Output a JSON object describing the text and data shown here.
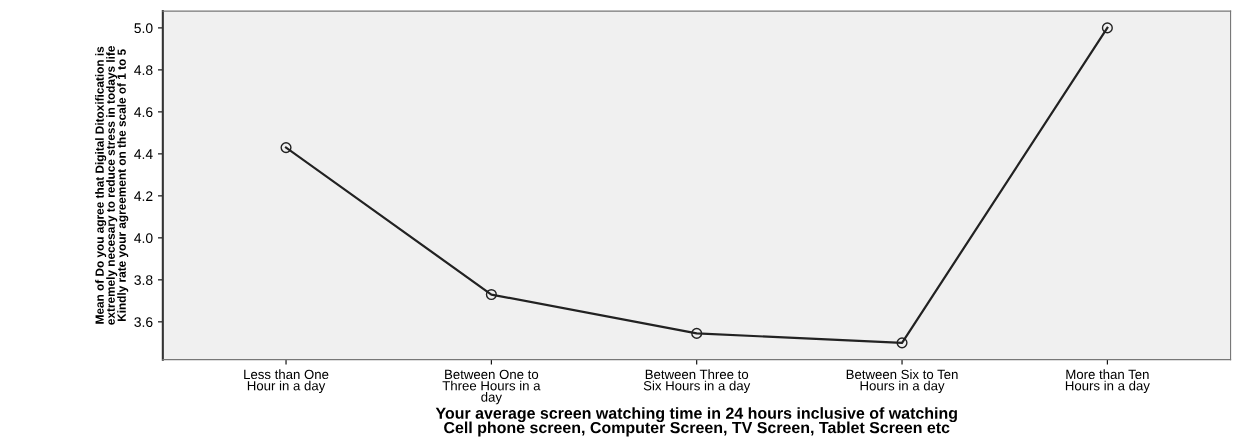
{
  "chart_data": {
    "type": "line",
    "categories": [
      "Less than One\nHour in a day",
      "Between One to\nThree Hours in a\nday",
      "Between Three to\nSix Hours in a day",
      "Between Six to Ten\nHours in a day",
      "More than Ten\nHours in a day"
    ],
    "series": [
      {
        "color": "#222222",
        "values": [
          4.43,
          3.73,
          3.545,
          3.5,
          5.0
        ]
      }
    ],
    "xlabel": "Your average screen watching time in 24 hours inclusive of watching\nCell phone screen, Computer Screen, TV Screen, Tablet Screen etc",
    "ylabel": "Mean of Do you agree that Digital Ditoxification is\nextremely necesary to reduce stress in todays life\nKindly rate your agreement on the scale of 1 to 5",
    "ylim": [
      3.42,
      5.08
    ],
    "yticks": [
      {
        "value": 3.6,
        "label": "3.6"
      },
      {
        "value": 3.8,
        "label": "3.8"
      },
      {
        "value": 4.0,
        "label": "4.0"
      },
      {
        "value": 4.2,
        "label": "4.2"
      },
      {
        "value": 4.4,
        "label": "4.4"
      },
      {
        "value": 4.6,
        "label": "4.6"
      },
      {
        "value": 4.8,
        "label": "4.8"
      },
      {
        "value": 5.0,
        "label": "5.0"
      }
    ],
    "marker": "circle",
    "line_style": "solid",
    "grid": false,
    "legend": false
  }
}
